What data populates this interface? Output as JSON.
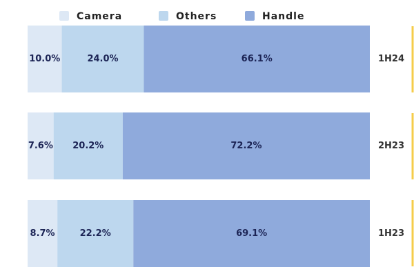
{
  "chart_data": {
    "type": "stacked-bar-100",
    "categories": [
      "1H24",
      "2H23",
      "1H23"
    ],
    "series": [
      {
        "name": "Camera",
        "color": "#dde8f5",
        "values": [
          10.0,
          7.6,
          8.7
        ],
        "value_labels": [
          "10.0%",
          "7.6%",
          "8.7%"
        ]
      },
      {
        "name": "Others",
        "color": "#bdd7ee",
        "values": [
          24.0,
          20.2,
          22.2
        ],
        "value_labels": [
          "24.0%",
          "20.2%",
          "22.2%"
        ]
      },
      {
        "name": "Handle",
        "color": "#8faadc",
        "values": [
          66.1,
          72.2,
          69.1
        ],
        "value_labels": [
          "66.1%",
          "72.2%",
          "69.1%"
        ]
      }
    ]
  }
}
